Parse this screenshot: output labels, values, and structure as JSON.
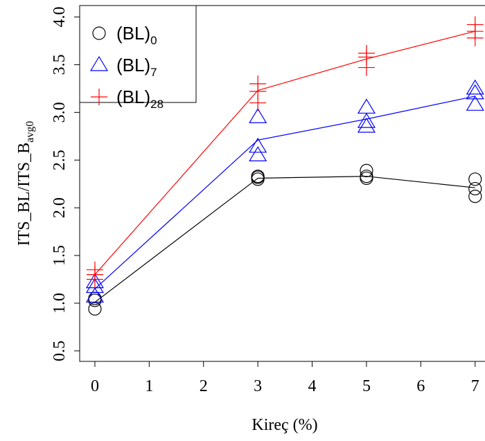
{
  "chart_data": {
    "type": "line-scatter",
    "x_label": "Kireç (%)",
    "y_label": "ITS_BL/ITS_B",
    "y_label_subscript": "avg0",
    "xlim": [
      -0.28,
      7.28
    ],
    "ylim": [
      0.39,
      4.12
    ],
    "xticks": [
      0,
      1,
      2,
      3,
      4,
      5,
      6,
      7
    ],
    "yticks": [
      0.5,
      {
        "value": 1,
        "label": "1.0"
      },
      1.5,
      {
        "value": 2,
        "label": "2.0"
      },
      2.5,
      {
        "value": 3,
        "label": "3.0"
      },
      3.5,
      {
        "value": 4,
        "label": "4.0"
      }
    ],
    "legend": "top-left",
    "series": [
      {
        "name": "(BL)",
        "name_subscript": "0",
        "color": "#000000",
        "marker": "circle",
        "points": {
          "x": [
            0,
            0,
            0,
            3,
            3,
            3,
            5,
            5,
            5,
            7,
            7,
            7
          ],
          "y": [
            0.94,
            1.03,
            1.05,
            2.3,
            2.32,
            2.33,
            2.31,
            2.33,
            2.39,
            2.12,
            2.2,
            2.3
          ]
        },
        "line": {
          "x": [
            0,
            3,
            5,
            7
          ],
          "y": [
            1.01,
            2.31,
            2.33,
            2.21
          ]
        }
      },
      {
        "name": "(BL)",
        "name_subscript": "7",
        "color": "#0000ff",
        "marker": "triangle",
        "points": {
          "x": [
            0,
            0,
            0,
            3,
            3,
            3,
            5,
            5,
            5,
            7,
            7,
            7
          ],
          "y": [
            1.07,
            1.17,
            1.22,
            2.55,
            2.64,
            2.95,
            2.85,
            2.9,
            3.05,
            3.08,
            3.2,
            3.25
          ]
        },
        "line": {
          "x": [
            0,
            3,
            5,
            7
          ],
          "y": [
            1.15,
            2.71,
            2.93,
            3.17
          ]
        }
      },
      {
        "name": "(BL)",
        "name_subscript": "28",
        "color": "#ff0000",
        "marker": "plus",
        "points": {
          "x": [
            0,
            0,
            0,
            3,
            3,
            3,
            5,
            5,
            5,
            7,
            7,
            7
          ],
          "y": [
            1.25,
            1.3,
            1.35,
            3.1,
            3.22,
            3.3,
            3.47,
            3.58,
            3.62,
            3.78,
            3.85,
            3.92
          ]
        },
        "line": {
          "x": [
            0,
            3,
            5,
            7
          ],
          "y": [
            1.3,
            3.23,
            3.56,
            3.85
          ]
        }
      }
    ]
  }
}
